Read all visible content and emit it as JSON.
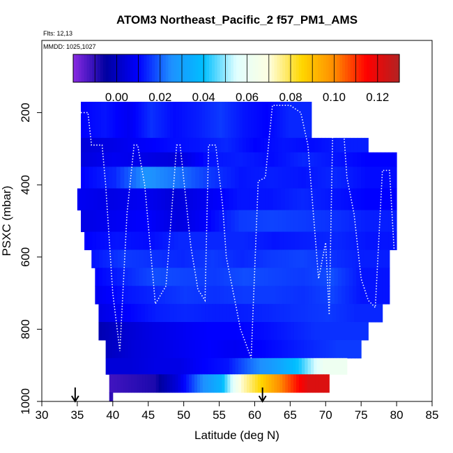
{
  "chart_data": {
    "type": "heatmap",
    "title": "ATOM3 Northeast_Pacific_2 f57_PM1_AMS",
    "annotations": [
      "Flts: 12,13",
      "MMDD: 1025,1027"
    ],
    "xlabel": "Latitude (deg N)",
    "ylabel": "PSXC (mbar)",
    "xlim": [
      30,
      85
    ],
    "ylim": [
      1000,
      0
    ],
    "x_ticks": [
      "30",
      "35",
      "40",
      "45",
      "50",
      "55",
      "60",
      "65",
      "70",
      "75",
      "80",
      "85"
    ],
    "y_ticks": [
      "200",
      "400",
      "600",
      "800",
      "1000"
    ],
    "colorbar": {
      "range": [
        -0.02,
        0.13
      ],
      "tick_values": [
        0.0,
        0.02,
        0.04,
        0.06,
        0.08,
        0.1,
        0.12
      ],
      "tick_labels": [
        "0.00",
        "0.02",
        "0.04",
        "0.06",
        "0.08",
        "0.10",
        "0.12"
      ],
      "colors": [
        "#8a2be2",
        "#0000a0",
        "#0000ff",
        "#1e90ff",
        "#00bfff",
        "#e0ffff",
        "#ffffe0",
        "#ffd700",
        "#ff8c00",
        "#ff0000",
        "#b22222"
      ]
    },
    "arrows_at_latitude": [
      34.7,
      61.1
    ],
    "layers": [
      {
        "p_top": 170,
        "p_bot": 270,
        "lat_min": 35.5,
        "lat_max": 68.0,
        "values": [
          0.01,
          0.012,
          0.008,
          0.015,
          0.011,
          0.013,
          0.016,
          0.012,
          0.01,
          0.014
        ]
      },
      {
        "p_top": 270,
        "p_bot": 310,
        "lat_min": 35.5,
        "lat_max": 76.0,
        "values": [
          0.004,
          0.006,
          0.009,
          0.011,
          0.012,
          0.014,
          0.01,
          0.012,
          0.011,
          0.013
        ]
      },
      {
        "p_top": 310,
        "p_bot": 350,
        "lat_min": 35.5,
        "lat_max": 80.0,
        "values": [
          0.005,
          0.008,
          0.006,
          0.004,
          0.012,
          0.013,
          0.011,
          0.014,
          0.012,
          0.01
        ]
      },
      {
        "p_top": 350,
        "p_bot": 410,
        "lat_min": 35.5,
        "lat_max": 80.0,
        "values": [
          0.01,
          0.014,
          0.026,
          0.022,
          0.016,
          0.012,
          0.013,
          0.012,
          0.014,
          0.011
        ]
      },
      {
        "p_top": 410,
        "p_bot": 470,
        "lat_min": 35.0,
        "lat_max": 80.0,
        "values": [
          0.008,
          0.006,
          0.008,
          0.004,
          0.008,
          0.012,
          0.012,
          0.014,
          0.012,
          0.01
        ]
      },
      {
        "p_top": 470,
        "p_bot": 530,
        "lat_min": 35.5,
        "lat_max": 80.0,
        "values": [
          0.006,
          0.008,
          0.01,
          0.005,
          0.01,
          0.016,
          0.017,
          0.016,
          0.015,
          0.013
        ]
      },
      {
        "p_top": 530,
        "p_bot": 580,
        "lat_min": 36.0,
        "lat_max": 80.0,
        "values": [
          0.01,
          0.012,
          0.011,
          0.014,
          0.014,
          0.014,
          0.012,
          0.013,
          0.014,
          0.012
        ]
      },
      {
        "p_top": 580,
        "p_bot": 630,
        "lat_min": 37.0,
        "lat_max": 79.0,
        "values": [
          0.012,
          0.016,
          0.015,
          0.014,
          0.016,
          0.014,
          0.016,
          0.017,
          0.015,
          0.013
        ]
      },
      {
        "p_top": 630,
        "p_bot": 680,
        "lat_min": 37.5,
        "lat_max": 79.0,
        "values": [
          0.01,
          0.014,
          0.018,
          0.017,
          0.016,
          0.018,
          0.017,
          0.016,
          0.018,
          0.012
        ]
      },
      {
        "p_top": 680,
        "p_bot": 730,
        "lat_min": 37.5,
        "lat_max": 79.0,
        "values": [
          0.008,
          0.012,
          0.014,
          0.016,
          0.015,
          0.016,
          0.016,
          0.015,
          0.017,
          0.012
        ]
      },
      {
        "p_top": 730,
        "p_bot": 780,
        "lat_min": 38.0,
        "lat_max": 78.0,
        "values": [
          0.006,
          0.01,
          0.013,
          0.014,
          0.013,
          0.013,
          0.014,
          0.015,
          0.016,
          0.014
        ]
      },
      {
        "p_top": 780,
        "p_bot": 830,
        "lat_min": 38.0,
        "lat_max": 76.0,
        "values": [
          -0.002,
          0.003,
          0.006,
          0.008,
          0.01,
          0.01,
          0.011,
          0.013,
          0.015,
          0.015
        ]
      },
      {
        "p_top": 830,
        "p_bot": 880,
        "lat_min": 39.0,
        "lat_max": 75.0,
        "values": [
          0.0,
          0.004,
          0.006,
          0.008,
          0.01,
          0.008,
          0.01,
          0.012,
          0.014,
          0.016
        ]
      },
      {
        "p_top": 880,
        "p_bot": 925,
        "lat_min": 39.0,
        "lat_max": 73.0,
        "values": [
          0.004,
          0.004,
          0.006,
          0.006,
          0.01,
          0.012,
          0.022,
          0.03,
          0.042,
          0.062
        ]
      },
      {
        "p_top": 925,
        "p_bot": 975,
        "lat_min": 39.5,
        "lat_max": 70.5,
        "values": [
          -0.012,
          -0.01,
          -0.008,
          0.004,
          0.022,
          0.036,
          0.072,
          0.088,
          0.105,
          0.122
        ]
      },
      {
        "p_top": 975,
        "p_bot": 1000,
        "lat_min": 39.5,
        "lat_max": 40.0,
        "values": [
          -0.01
        ]
      }
    ],
    "flight_track_lat": [
      35.5,
      36.5,
      37,
      38.5,
      39,
      40,
      41,
      42,
      43,
      43.5,
      44.5,
      46,
      47.5,
      49,
      49.5,
      51,
      52,
      53,
      53.5,
      54.5,
      55.5,
      56,
      58,
      59.5,
      60.5,
      61.5,
      62.5,
      63,
      64,
      65,
      66.5,
      67.5,
      69,
      70,
      70.5,
      71,
      72.5,
      73,
      74,
      75,
      76,
      77,
      78,
      79,
      80
    ],
    "flight_track_psxc": [
      200,
      200,
      290,
      290,
      400,
      700,
      860,
      480,
      290,
      290,
      400,
      730,
      680,
      290,
      290,
      570,
      690,
      720,
      290,
      290,
      460,
      600,
      800,
      880,
      390,
      380,
      180,
      180,
      180,
      180,
      200,
      290,
      660,
      560,
      760,
      240,
      240,
      380,
      480,
      660,
      720,
      740,
      360,
      360,
      700
    ]
  }
}
